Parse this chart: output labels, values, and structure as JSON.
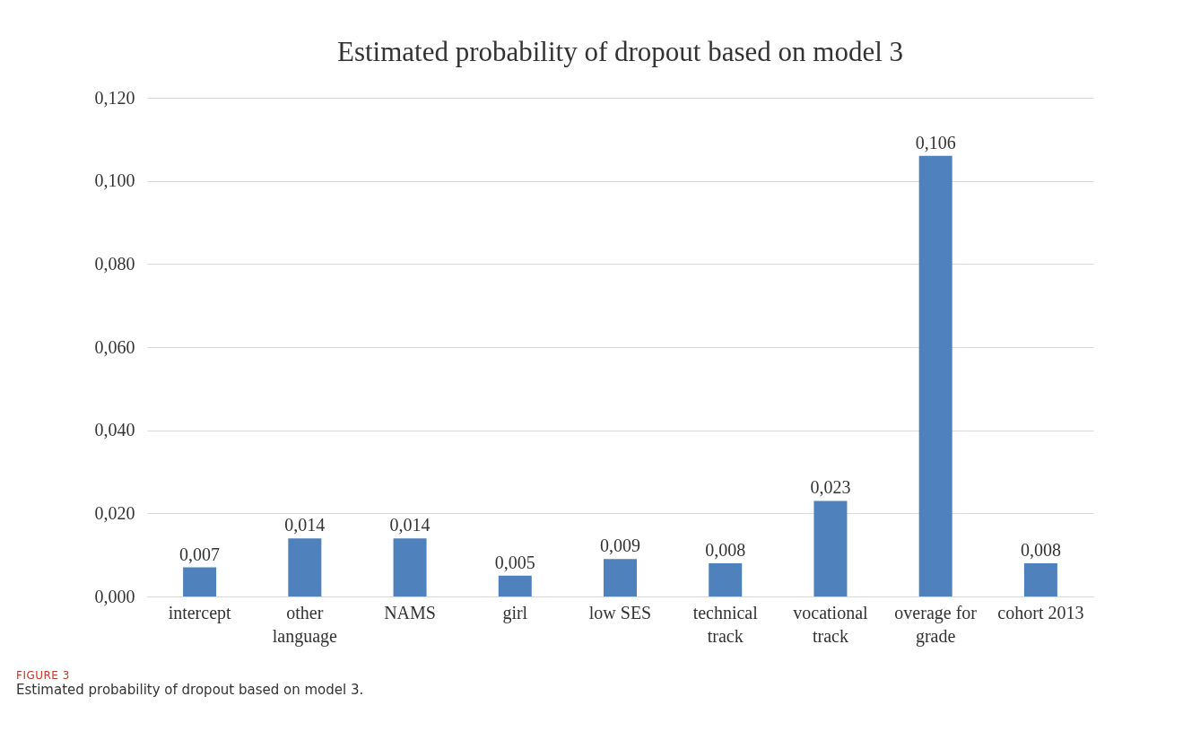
{
  "chart_data": {
    "type": "bar",
    "title": "Estimated probability of dropout based on model 3",
    "categories": [
      "intercept",
      "other language",
      "NAMS",
      "girl",
      "low SES",
      "technical track",
      "vocational track",
      "overage for grade",
      "cohort 2013"
    ],
    "values": [
      0.007,
      0.014,
      0.014,
      0.005,
      0.009,
      0.008,
      0.023,
      0.106,
      0.008
    ],
    "value_labels": [
      "0,007",
      "0,014",
      "0,014",
      "0,005",
      "0,009",
      "0,008",
      "0,023",
      "0,106",
      "0,008"
    ],
    "color": "#4f81bd",
    "ylim": [
      0,
      0.12
    ],
    "yticks": [
      {
        "value": 0,
        "label": "0,000"
      },
      {
        "value": 0.02,
        "label": "0,020"
      },
      {
        "value": 0.04,
        "label": "0,040"
      },
      {
        "value": 0.06,
        "label": "0,060"
      },
      {
        "value": 0.08,
        "label": "0,080"
      },
      {
        "value": 0.1,
        "label": "0,100"
      },
      {
        "value": 0.12,
        "label": "0,120"
      }
    ],
    "grid": "y",
    "annotations": [
      "FIGURE 3",
      "Estimated probability of dropout based on model 3."
    ]
  }
}
